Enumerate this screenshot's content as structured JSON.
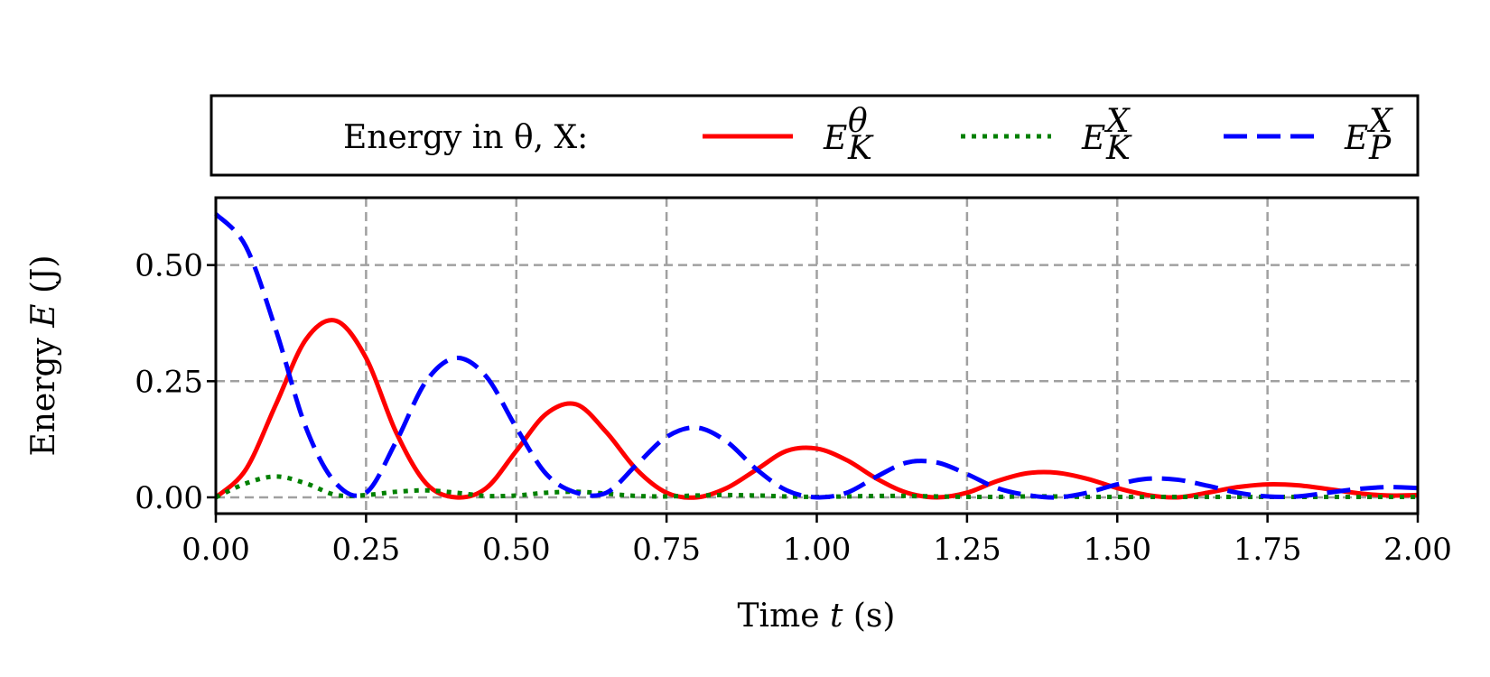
{
  "chart_data": {
    "type": "line",
    "xlabel": {
      "prefix": "Time ",
      "var": "t",
      "suffix": " (s)"
    },
    "ylabel": {
      "prefix": "Energy ",
      "var": "E",
      "suffix": " (J)"
    },
    "xlim": [
      0,
      2
    ],
    "ylim": [
      -0.035,
      0.645
    ],
    "xticks": [
      0,
      0.25,
      0.5,
      0.75,
      1.0,
      1.25,
      1.5,
      1.75,
      2.0
    ],
    "xtick_labels": [
      "0.00",
      "0.25",
      "0.50",
      "0.75",
      "1.00",
      "1.25",
      "1.50",
      "1.75",
      "2.00"
    ],
    "yticks": [
      0,
      0.25,
      0.5
    ],
    "ytick_labels": [
      "0.00",
      "0.25",
      "0.50"
    ],
    "grid": true,
    "legend": {
      "placement": "top, outside plot",
      "title": "Energy in θ, X:",
      "entries": [
        {
          "base": "E",
          "sup": "θ",
          "sub": "K",
          "series": 0
        },
        {
          "base": "E",
          "sup": "X",
          "sub": "K",
          "series": 1
        },
        {
          "base": "E",
          "sup": "X",
          "sub": "P",
          "series": 2
        }
      ]
    },
    "x": [
      0,
      0.05,
      0.1,
      0.15,
      0.2,
      0.25,
      0.3,
      0.35,
      0.4,
      0.45,
      0.5,
      0.55,
      0.6,
      0.65,
      0.7,
      0.75,
      0.8,
      0.85,
      0.9,
      0.95,
      1.0,
      1.05,
      1.1,
      1.15,
      1.2,
      1.25,
      1.3,
      1.35,
      1.4,
      1.45,
      1.5,
      1.55,
      1.6,
      1.65,
      1.7,
      1.75,
      1.8,
      1.85,
      1.9,
      1.95,
      2.0
    ],
    "series": [
      {
        "name": "E_K^θ",
        "color": "#ff0000",
        "style": "solid",
        "values": [
          0.0,
          0.06,
          0.2,
          0.34,
          0.38,
          0.3,
          0.14,
          0.03,
          0.0,
          0.02,
          0.1,
          0.18,
          0.2,
          0.14,
          0.06,
          0.01,
          0.0,
          0.02,
          0.06,
          0.1,
          0.105,
          0.08,
          0.04,
          0.01,
          0.0,
          0.01,
          0.035,
          0.052,
          0.053,
          0.04,
          0.02,
          0.005,
          0.0,
          0.01,
          0.022,
          0.028,
          0.026,
          0.018,
          0.009,
          0.004,
          0.005
        ]
      },
      {
        "name": "E_K^X",
        "color": "#008000",
        "style": "dotted",
        "values": [
          0.0,
          0.03,
          0.045,
          0.03,
          0.005,
          0.005,
          0.012,
          0.015,
          0.01,
          0.003,
          0.004,
          0.01,
          0.012,
          0.008,
          0.003,
          0.002,
          0.004,
          0.005,
          0.004,
          0.002,
          0.001,
          0.002,
          0.003,
          0.003,
          0.002,
          0.001,
          0.001,
          0.002,
          0.002,
          0.001,
          0.001,
          0.001,
          0.001,
          0.001,
          0.001,
          0.001,
          0.001,
          0.001,
          0.001,
          0.001,
          0.001
        ]
      },
      {
        "name": "E_P^X",
        "color": "#0000ff",
        "style": "dashed",
        "values": [
          0.61,
          0.54,
          0.36,
          0.15,
          0.03,
          0.01,
          0.12,
          0.25,
          0.3,
          0.26,
          0.15,
          0.05,
          0.01,
          0.01,
          0.07,
          0.13,
          0.15,
          0.12,
          0.06,
          0.015,
          0.0,
          0.01,
          0.045,
          0.075,
          0.075,
          0.05,
          0.02,
          0.005,
          0.0,
          0.01,
          0.028,
          0.04,
          0.038,
          0.025,
          0.01,
          0.002,
          0.002,
          0.01,
          0.018,
          0.022,
          0.02
        ]
      }
    ]
  }
}
